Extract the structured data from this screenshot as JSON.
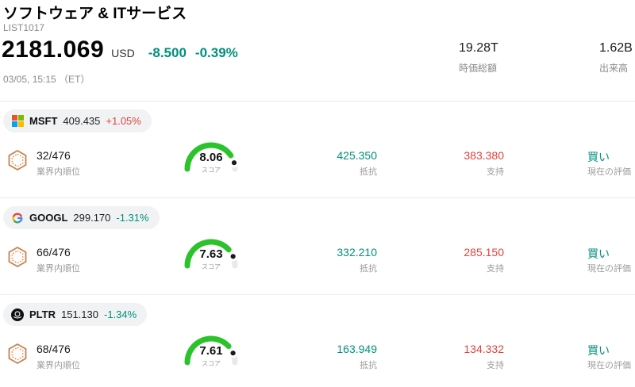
{
  "colors": {
    "accent_up": "#e0433e",
    "accent_down": "#00917e",
    "gauge_green": "#2bc32b",
    "gauge_track": "#e9e9e9"
  },
  "header": {
    "title": "ソフトウェア & ITサービス",
    "list_id": "LIST1017"
  },
  "quote": {
    "price": "2181.069",
    "currency": "USD",
    "change": "-8.500",
    "change_pct": "-0.39%",
    "direction": "down",
    "timestamp": "03/05, 15:15 （ET）",
    "market_cap": "19.28T",
    "market_cap_label": "時価総額",
    "volume": "1.62B",
    "volume_label": "出来高"
  },
  "labels": {
    "rank": "業界内順位",
    "score": "スコア",
    "resistance": "抵抗",
    "support": "支持",
    "rating": "現在の評価"
  },
  "rows": [
    {
      "ticker": "MSFT",
      "price": "409.435",
      "change_pct": "+1.05%",
      "direction": "up",
      "rank": "32/476",
      "score": "8.06",
      "resistance": "425.350",
      "support": "383.380",
      "rating": "買い"
    },
    {
      "ticker": "GOOGL",
      "price": "299.170",
      "change_pct": "-1.31%",
      "direction": "down",
      "rank": "66/476",
      "score": "7.63",
      "resistance": "332.210",
      "support": "285.150",
      "rating": "買い"
    },
    {
      "ticker": "PLTR",
      "price": "151.130",
      "change_pct": "-1.34%",
      "direction": "down",
      "rank": "68/476",
      "score": "7.61",
      "resistance": "163.949",
      "support": "134.332",
      "rating": "買い"
    }
  ]
}
